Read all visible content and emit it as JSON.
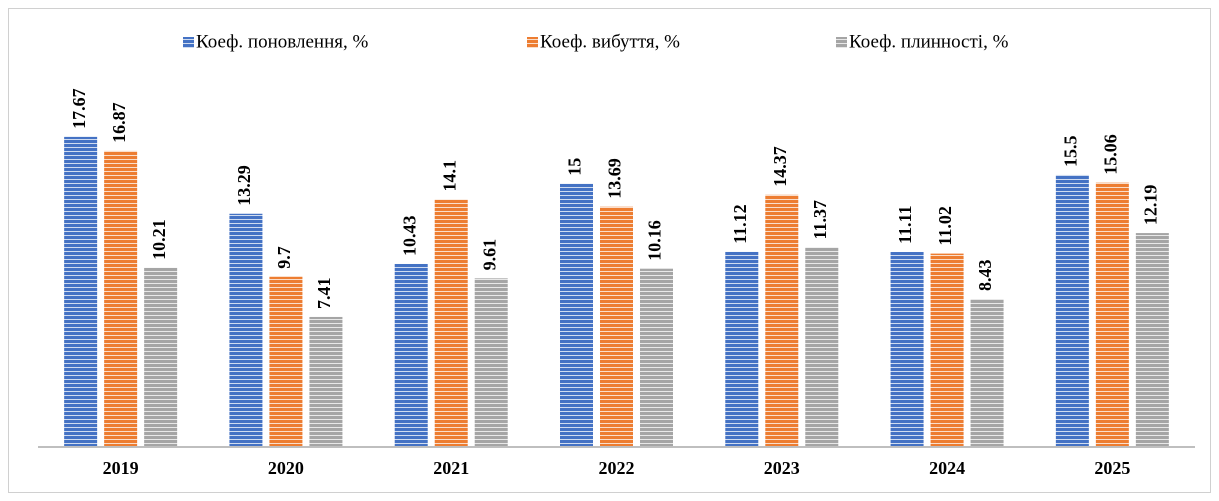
{
  "chart_data": {
    "type": "bar",
    "categories": [
      "2019",
      "2020",
      "2021",
      "2022",
      "2023",
      "2024",
      "2025"
    ],
    "series": [
      {
        "name": "Коеф. поновлення, %",
        "color": "#4472c4",
        "values": [
          17.67,
          13.29,
          10.43,
          15,
          11.12,
          11.11,
          15.5
        ]
      },
      {
        "name": "Коеф. вибуття, %",
        "color": "#ed7d31",
        "values": [
          16.87,
          9.7,
          14.1,
          13.69,
          14.37,
          11.02,
          15.06
        ]
      },
      {
        "name": "Коеф. плинності, %",
        "color": "#a5a5a5",
        "values": [
          10.21,
          7.41,
          9.61,
          10.16,
          11.37,
          8.43,
          12.19
        ]
      }
    ],
    "ylim": [
      0,
      20
    ],
    "legend": "top"
  }
}
